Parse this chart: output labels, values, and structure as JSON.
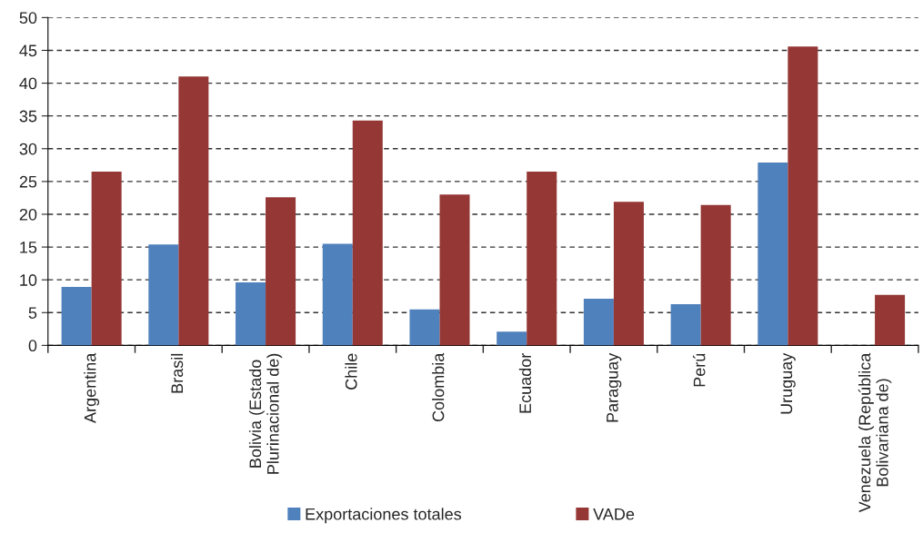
{
  "chart_data": {
    "type": "bar",
    "categories": [
      "Argentina",
      "Brasil",
      "Bolivia (Estado\nPlurinacional de)",
      "Chile",
      "Colombia",
      "Ecuador",
      "Paraguay",
      "Perú",
      "Uruguay",
      "Venezuela (República\nBolivariana de)"
    ],
    "series": [
      {
        "name": "Exportaciones totales",
        "color": "#4f81bd",
        "values": [
          8.9,
          15.4,
          9.6,
          15.5,
          5.5,
          2.1,
          7.1,
          6.3,
          27.9,
          null
        ]
      },
      {
        "name": "VADe",
        "color": "#953735",
        "values": [
          26.5,
          41.0,
          22.6,
          34.3,
          23.0,
          26.5,
          21.9,
          21.4,
          45.6,
          7.7
        ]
      }
    ],
    "ylim": [
      0,
      50
    ],
    "yticks": [
      0,
      5,
      10,
      15,
      20,
      25,
      30,
      35,
      40,
      45,
      50
    ],
    "grid": "y",
    "line_style": "dashed",
    "legend": "bottom"
  }
}
